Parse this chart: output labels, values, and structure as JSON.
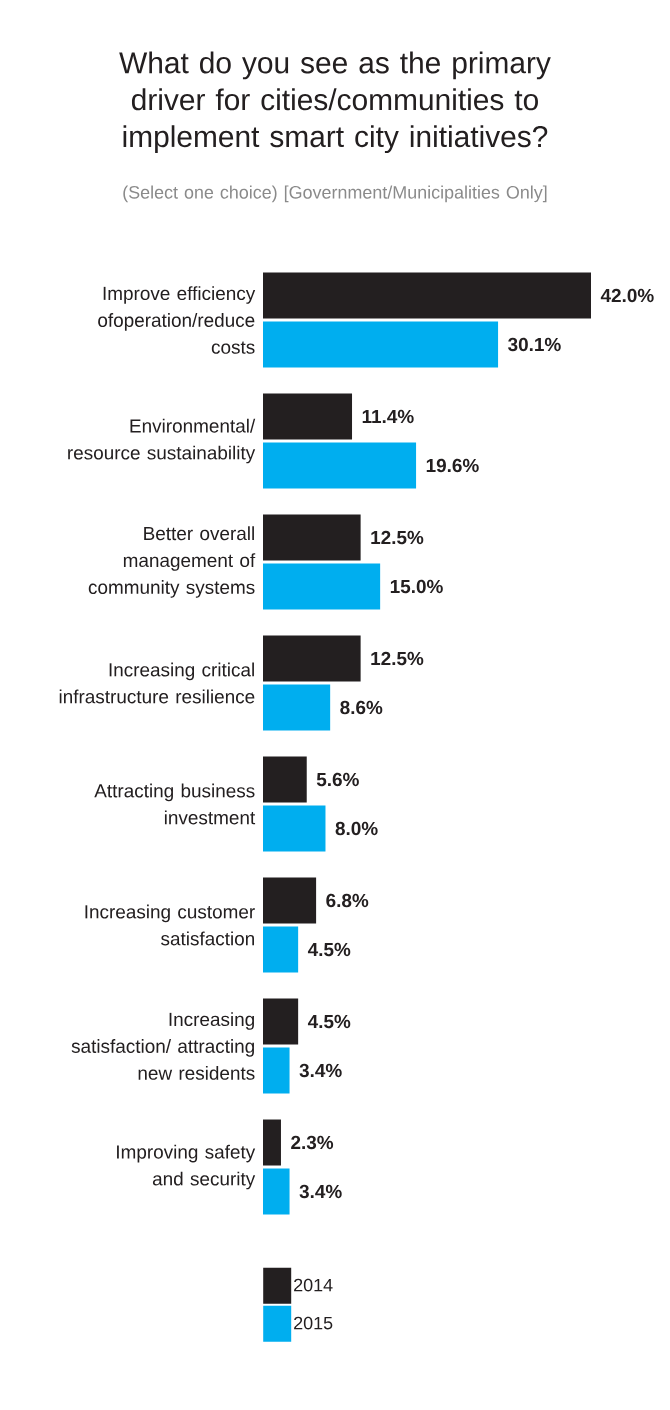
{
  "chart_data": {
    "type": "bar",
    "orientation": "horizontal",
    "title": "What do you see as the primary driver for cities/communities to implement smart city initiatives?",
    "subtitle": "(Select one choice) [Government/Municipalities Only]",
    "categories": [
      "Improve efficiency ofoperation/reduce costs",
      "Environmental/ resource sustainability",
      "Better overall management of community systems",
      "Increasing critical infrastructure resilience",
      "Attracting business investment",
      "Increasing customer satisfaction",
      "Increasing satisfaction/ attracting new residents",
      "Improving safety and security"
    ],
    "series": [
      {
        "name": "2014",
        "color": "#231f20",
        "values": [
          42.0,
          11.4,
          12.5,
          12.5,
          5.6,
          6.8,
          4.5,
          2.3
        ],
        "value_labels": [
          "42.0%",
          "11.4%",
          "12.5%",
          "12.5%",
          "5.6%",
          "6.8%",
          "4.5%",
          "2.3%"
        ]
      },
      {
        "name": "2015",
        "color": "#00aeef",
        "values": [
          30.1,
          19.6,
          15.0,
          8.6,
          8.0,
          4.5,
          3.4,
          3.4
        ],
        "value_labels": [
          "30.1%",
          "19.6%",
          "15.0%",
          "8.6%",
          "8.0%",
          "4.5%",
          "3.4%",
          "3.4%"
        ]
      }
    ],
    "tick_labels": "y",
    "legend": "bottom"
  }
}
